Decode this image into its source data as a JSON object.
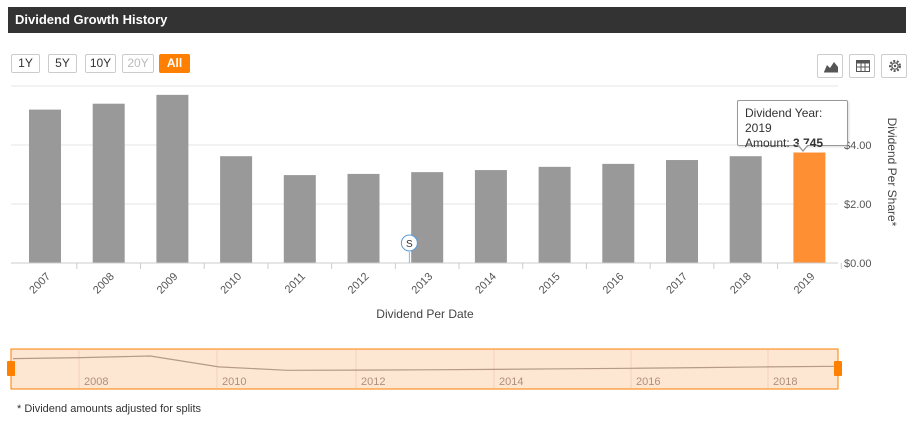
{
  "header": {
    "title": "Dividend Growth History"
  },
  "range_buttons": [
    {
      "label": "1Y",
      "state": "normal"
    },
    {
      "label": "5Y",
      "state": "normal"
    },
    {
      "label": "10Y",
      "state": "normal"
    },
    {
      "label": "20Y",
      "state": "disabled"
    },
    {
      "label": "All",
      "state": "active"
    }
  ],
  "toolbar": {
    "icons": [
      "area-chart-icon",
      "table-icon",
      "gear-icon"
    ]
  },
  "colors": {
    "bar": "#999999",
    "bar_highlight": "#ff8f33",
    "accent": "#ff7f00",
    "navigator_fill": "#fde6d2",
    "navigator_line": "#b59a8a"
  },
  "tooltip": {
    "year_label": "Dividend Year:",
    "year_value": "2019",
    "amount_label": "Amount:",
    "amount_value": "3.745"
  },
  "flag": {
    "label": "S",
    "meaning": "split"
  },
  "chart_data": {
    "type": "bar",
    "title": "Dividend Growth History",
    "xlabel": "Dividend Per Date",
    "ylabel": "Dividend Per Share*",
    "categories": [
      "2007",
      "2008",
      "2009",
      "2010",
      "2011",
      "2012",
      "2013",
      "2014",
      "2015",
      "2016",
      "2017",
      "2018",
      "2019"
    ],
    "values": [
      5.2,
      5.4,
      5.7,
      3.62,
      2.98,
      3.02,
      3.08,
      3.15,
      3.26,
      3.36,
      3.49,
      3.62,
      3.745
    ],
    "highlight_index": 12,
    "ylim": [
      0,
      6.0
    ],
    "yticks": [
      {
        "value": 0,
        "label": "$0.00"
      },
      {
        "value": 2,
        "label": "$2.00"
      },
      {
        "value": 4,
        "label": "$4.00"
      }
    ],
    "grid": true,
    "split_flag_year": "2012",
    "navigator_labels": [
      "2008",
      "2010",
      "2012",
      "2014",
      "2016",
      "2018"
    ]
  },
  "footnote": "* Dividend amounts adjusted for splits"
}
